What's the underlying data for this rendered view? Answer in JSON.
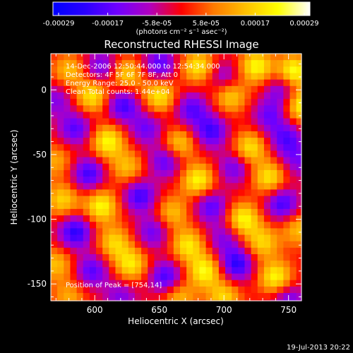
{
  "colorbar": {
    "tick_labels": [
      "-0.00029",
      "-0.00017",
      "-5.8e-05",
      "5.8e-05",
      "0.00017",
      "0.00029"
    ],
    "unit_label": "(photons cm⁻² s⁻¹ asec⁻²)",
    "range": [
      -0.00029,
      0.00029
    ],
    "colormap": [
      "#0000ff",
      "#2a00ff",
      "#6f00ff",
      "#b000c0",
      "#ff0000",
      "#ff7a00",
      "#ffc000",
      "#ffff00",
      "#ffffff"
    ]
  },
  "chart_data": {
    "type": "heatmap",
    "title": "Reconstructed RHESSI Image",
    "xlabel": "Heliocentric X (arcsec)",
    "ylabel": "Heliocentric Y (arcsec)",
    "xlim": [
      566,
      760
    ],
    "ylim": [
      -163,
      28
    ],
    "x_ticks": [
      600,
      650,
      700,
      750
    ],
    "y_ticks": [
      0,
      -50,
      -100,
      -150
    ],
    "annotations": [
      "14-Dec-2006 12:50:44.000 to 12:54:34.000",
      "Detectors: 4F 5F 6F 7F 8F, Att 0",
      "Energy Range: 25.0 - 50.0 keV",
      "Clean     Total counts: 1.44e+04"
    ],
    "peak_label": "Position of Peak = [754,14]",
    "peak": [
      754,
      14
    ],
    "blobs": [
      {
        "x": 580,
        "y": 15,
        "v": 0.6
      },
      {
        "x": 605,
        "y": 18,
        "v": -0.6
      },
      {
        "x": 625,
        "y": 12,
        "v": 0.7
      },
      {
        "x": 650,
        "y": 20,
        "v": -0.7
      },
      {
        "x": 680,
        "y": 18,
        "v": 0.8
      },
      {
        "x": 700,
        "y": 10,
        "v": -0.5
      },
      {
        "x": 725,
        "y": 18,
        "v": 0.9
      },
      {
        "x": 754,
        "y": 14,
        "v": 1.0
      },
      {
        "x": 745,
        "y": 0,
        "v": -0.6
      },
      {
        "x": 570,
        "y": -8,
        "v": -0.5
      },
      {
        "x": 598,
        "y": -5,
        "v": 0.8
      },
      {
        "x": 622,
        "y": -12,
        "v": -0.8
      },
      {
        "x": 650,
        "y": -5,
        "v": 0.8
      },
      {
        "x": 675,
        "y": -15,
        "v": -0.7
      },
      {
        "x": 705,
        "y": -5,
        "v": 0.7
      },
      {
        "x": 735,
        "y": -20,
        "v": -0.6
      },
      {
        "x": 760,
        "y": -12,
        "v": 0.9
      },
      {
        "x": 585,
        "y": -30,
        "v": -0.7
      },
      {
        "x": 610,
        "y": -40,
        "v": 0.9
      },
      {
        "x": 640,
        "y": -30,
        "v": -0.6
      },
      {
        "x": 665,
        "y": -42,
        "v": 0.7
      },
      {
        "x": 690,
        "y": -32,
        "v": -0.8
      },
      {
        "x": 720,
        "y": -45,
        "v": 0.8
      },
      {
        "x": 748,
        "y": -38,
        "v": -0.7
      },
      {
        "x": 570,
        "y": -55,
        "v": 0.5
      },
      {
        "x": 595,
        "y": -65,
        "v": -0.8
      },
      {
        "x": 625,
        "y": -60,
        "v": 0.6
      },
      {
        "x": 655,
        "y": -55,
        "v": -0.7
      },
      {
        "x": 680,
        "y": -70,
        "v": 0.9
      },
      {
        "x": 708,
        "y": -60,
        "v": -0.6
      },
      {
        "x": 735,
        "y": -68,
        "v": 0.8
      },
      {
        "x": 758,
        "y": -55,
        "v": -0.5
      },
      {
        "x": 575,
        "y": -85,
        "v": 0.7
      },
      {
        "x": 605,
        "y": -90,
        "v": 0.9
      },
      {
        "x": 635,
        "y": -82,
        "v": -0.8
      },
      {
        "x": 660,
        "y": -95,
        "v": 0.6
      },
      {
        "x": 690,
        "y": -90,
        "v": -0.7
      },
      {
        "x": 715,
        "y": -100,
        "v": 0.9
      },
      {
        "x": 745,
        "y": -88,
        "v": -0.8
      },
      {
        "x": 585,
        "y": -110,
        "v": -0.9
      },
      {
        "x": 615,
        "y": -118,
        "v": 0.7
      },
      {
        "x": 645,
        "y": -110,
        "v": -0.6
      },
      {
        "x": 672,
        "y": -120,
        "v": 0.8
      },
      {
        "x": 700,
        "y": -115,
        "v": -0.5
      },
      {
        "x": 730,
        "y": -118,
        "v": 0.7
      },
      {
        "x": 758,
        "y": -108,
        "v": 0.6
      },
      {
        "x": 570,
        "y": -135,
        "v": 0.6
      },
      {
        "x": 598,
        "y": -140,
        "v": -0.7
      },
      {
        "x": 628,
        "y": -135,
        "v": 0.8
      },
      {
        "x": 655,
        "y": -145,
        "v": -0.8
      },
      {
        "x": 685,
        "y": -140,
        "v": 0.9
      },
      {
        "x": 710,
        "y": -135,
        "v": -0.9
      },
      {
        "x": 740,
        "y": -145,
        "v": 0.9
      },
      {
        "x": 580,
        "y": -160,
        "v": 0.5
      },
      {
        "x": 620,
        "y": -160,
        "v": -0.5
      },
      {
        "x": 665,
        "y": -160,
        "v": 0.6
      },
      {
        "x": 700,
        "y": -160,
        "v": 0.7
      },
      {
        "x": 750,
        "y": -162,
        "v": -0.6
      }
    ]
  },
  "timestamp": "19-Jul-2013 20:22"
}
